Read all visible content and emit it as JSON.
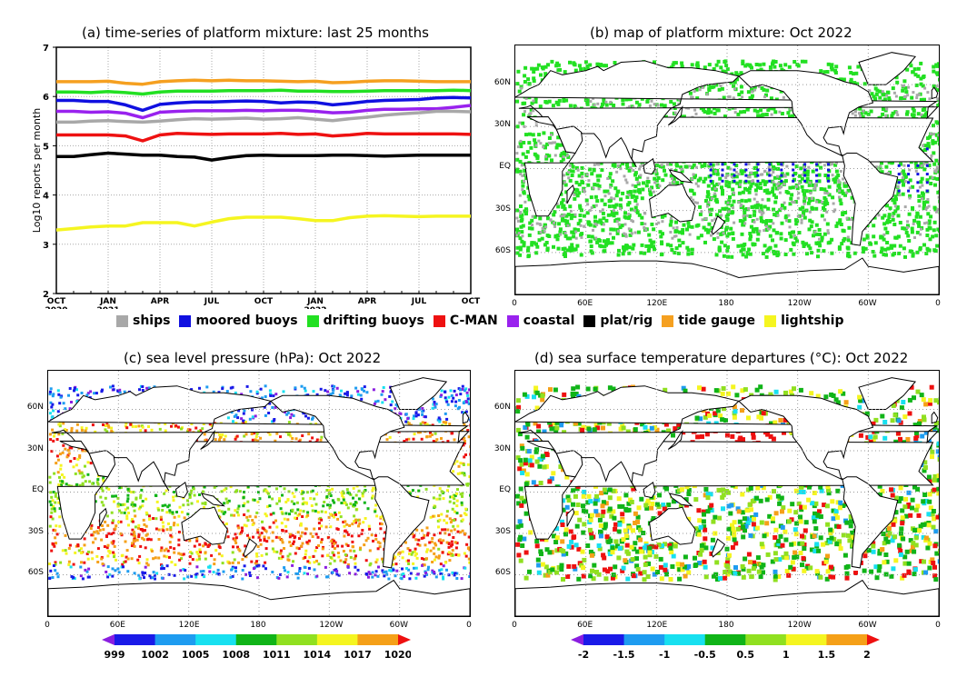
{
  "panels": {
    "a": {
      "title": "(a) time-series of platform mixture: last 25 months"
    },
    "b": {
      "title": "(b) map of platform mixture: Oct 2022"
    },
    "c": {
      "title": "(c) sea level pressure (hPa): Oct 2022"
    },
    "d": {
      "title": "(d) sea surface temperature departures (°C): Oct 2022"
    }
  },
  "legend": [
    {
      "label": "ships",
      "color": "#a8a8a8"
    },
    {
      "label": "moored buoys",
      "color": "#1010e0"
    },
    {
      "label": "drifting buoys",
      "color": "#22e022"
    },
    {
      "label": "C-MAN",
      "color": "#ee1111"
    },
    {
      "label": "coastal",
      "color": "#9922ee"
    },
    {
      "label": "plat/rig",
      "color": "#000000"
    },
    {
      "label": "tide gauge",
      "color": "#f5a020"
    },
    {
      "label": "lightship",
      "color": "#f5f520"
    }
  ],
  "map_axes": {
    "lon_ticks": [
      "0",
      "60E",
      "120E",
      "180",
      "120W",
      "60W",
      "0"
    ],
    "lat_ticks": [
      "60N",
      "30N",
      "EQ",
      "30S",
      "60S"
    ]
  },
  "chart_data": [
    {
      "type": "line",
      "title": "(a) time-series of platform mixture: last 25 months",
      "ylabel": "Log10 reports per month",
      "xlabel": "",
      "ylim": [
        2,
        7
      ],
      "yticks": [
        "2",
        "3",
        "4",
        "5",
        "6",
        "7"
      ],
      "xtick_labels": [
        {
          "month": "OCT",
          "year": "2020"
        },
        {
          "month": "JAN",
          "year": "2021"
        },
        {
          "month": "APR",
          "year": ""
        },
        {
          "month": "JUL",
          "year": ""
        },
        {
          "month": "OCT",
          "year": ""
        },
        {
          "month": "JAN",
          "year": "2022"
        },
        {
          "month": "APR",
          "year": ""
        },
        {
          "month": "JUL",
          "year": ""
        },
        {
          "month": "OCT",
          "year": ""
        }
      ],
      "x_months": [
        "Oct 2020",
        "Nov 2020",
        "Dec 2020",
        "Jan 2021",
        "Feb 2021",
        "Mar 2021",
        "Apr 2021",
        "May 2021",
        "Jun 2021",
        "Jul 2021",
        "Aug 2021",
        "Sep 2021",
        "Oct 2021",
        "Nov 2021",
        "Dec 2021",
        "Jan 2022",
        "Feb 2022",
        "Mar 2022",
        "Apr 2022",
        "May 2022",
        "Jun 2022",
        "Jul 2022",
        "Aug 2022",
        "Sep 2022",
        "Oct 2022"
      ],
      "grid": true,
      "series": [
        {
          "name": "tide gauge",
          "color": "#f5a020",
          "values": [
            6.3,
            6.3,
            6.3,
            6.31,
            6.27,
            6.25,
            6.3,
            6.32,
            6.33,
            6.32,
            6.33,
            6.32,
            6.32,
            6.31,
            6.3,
            6.31,
            6.28,
            6.29,
            6.31,
            6.32,
            6.32,
            6.31,
            6.3,
            6.3,
            6.3
          ]
        },
        {
          "name": "drifting buoys",
          "color": "#22e022",
          "values": [
            6.09,
            6.09,
            6.08,
            6.1,
            6.08,
            6.05,
            6.09,
            6.11,
            6.11,
            6.11,
            6.12,
            6.12,
            6.12,
            6.13,
            6.11,
            6.11,
            6.1,
            6.1,
            6.11,
            6.12,
            6.12,
            6.12,
            6.12,
            6.13,
            6.12
          ]
        },
        {
          "name": "moored buoys",
          "color": "#1010e0",
          "values": [
            5.92,
            5.92,
            5.9,
            5.9,
            5.83,
            5.72,
            5.84,
            5.87,
            5.89,
            5.89,
            5.9,
            5.91,
            5.9,
            5.87,
            5.89,
            5.88,
            5.83,
            5.86,
            5.9,
            5.92,
            5.93,
            5.94,
            5.97,
            5.98,
            5.97
          ]
        },
        {
          "name": "coastal",
          "color": "#9922ee",
          "values": [
            5.7,
            5.7,
            5.68,
            5.69,
            5.66,
            5.57,
            5.68,
            5.7,
            5.71,
            5.71,
            5.71,
            5.72,
            5.71,
            5.72,
            5.72,
            5.7,
            5.67,
            5.68,
            5.72,
            5.74,
            5.74,
            5.75,
            5.75,
            5.78,
            5.82
          ]
        },
        {
          "name": "ships",
          "color": "#a8a8a8",
          "values": [
            5.48,
            5.48,
            5.5,
            5.51,
            5.49,
            5.48,
            5.5,
            5.53,
            5.55,
            5.54,
            5.55,
            5.56,
            5.54,
            5.55,
            5.57,
            5.54,
            5.51,
            5.55,
            5.58,
            5.62,
            5.65,
            5.67,
            5.7,
            5.7,
            5.69
          ]
        },
        {
          "name": "C-MAN",
          "color": "#ee1111",
          "values": [
            5.22,
            5.22,
            5.22,
            5.22,
            5.2,
            5.1,
            5.22,
            5.25,
            5.24,
            5.23,
            5.24,
            5.24,
            5.24,
            5.25,
            5.23,
            5.24,
            5.2,
            5.22,
            5.25,
            5.24,
            5.24,
            5.24,
            5.24,
            5.24,
            5.23
          ]
        },
        {
          "name": "plat/rig",
          "color": "#000000",
          "values": [
            4.78,
            4.78,
            4.82,
            4.85,
            4.83,
            4.81,
            4.81,
            4.78,
            4.77,
            4.71,
            4.76,
            4.8,
            4.81,
            4.8,
            4.8,
            4.8,
            4.81,
            4.81,
            4.8,
            4.79,
            4.8,
            4.81,
            4.81,
            4.81,
            4.81
          ]
        },
        {
          "name": "lightship",
          "color": "#f5f520",
          "values": [
            3.29,
            3.32,
            3.35,
            3.37,
            3.37,
            3.44,
            3.44,
            3.44,
            3.37,
            3.45,
            3.52,
            3.55,
            3.55,
            3.55,
            3.52,
            3.48,
            3.48,
            3.54,
            3.57,
            3.58,
            3.57,
            3.56,
            3.57,
            3.57,
            3.57
          ]
        }
      ]
    },
    {
      "type": "heatmap",
      "title": "(c) sea level pressure (hPa): Oct 2022",
      "colorbar_label_values": [
        "999",
        "1002",
        "1005",
        "1008",
        "1011",
        "1014",
        "1017",
        "1020"
      ],
      "colors": [
        "#8a1ee0",
        "#1a1ae8",
        "#1e9cf0",
        "#18e0f0",
        "#10b418",
        "#90e020",
        "#f5f520",
        "#f5a018",
        "#ee1010"
      ]
    },
    {
      "type": "heatmap",
      "title": "(d) sea surface temperature departures (°C): Oct 2022",
      "colorbar_label_values": [
        "-2",
        "-1.5",
        "-1",
        "-0.5",
        "0.5",
        "1",
        "1.5",
        "2"
      ],
      "colors": [
        "#8a1ee0",
        "#1a1ae8",
        "#1e9cf0",
        "#18e0f0",
        "#10b418",
        "#90e020",
        "#f5f520",
        "#f5a018",
        "#ee1010"
      ]
    }
  ]
}
